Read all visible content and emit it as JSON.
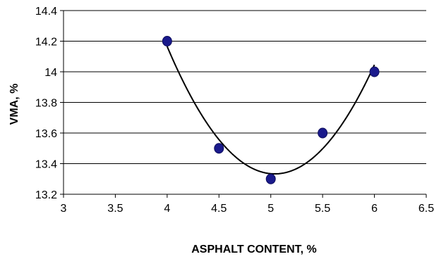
{
  "chart_data": {
    "type": "scatter",
    "title": "",
    "xlabel": "ASPHALT CONTENT, %",
    "ylabel": "VMA, %",
    "xlim": [
      3,
      6.5
    ],
    "ylim": [
      13.2,
      14.4
    ],
    "x_ticks": [
      "3",
      "3.5",
      "4",
      "4.5",
      "5",
      "5.5",
      "6",
      "6.5"
    ],
    "y_ticks": [
      "13.2",
      "13.4",
      "13.6",
      "13.8",
      "14",
      "14.2",
      "14.4"
    ],
    "grid": "horizontal",
    "legend": "none",
    "series": [
      {
        "x": [
          4,
          4.5,
          5,
          5.5,
          6
        ],
        "values": [
          14.2,
          13.5,
          13.3,
          13.6,
          14.0
        ],
        "marker_color": "#1a1a8c"
      }
    ],
    "trendline": {
      "type": "polynomial-2",
      "x_range": [
        4,
        6
      ],
      "color": "#000000"
    }
  }
}
